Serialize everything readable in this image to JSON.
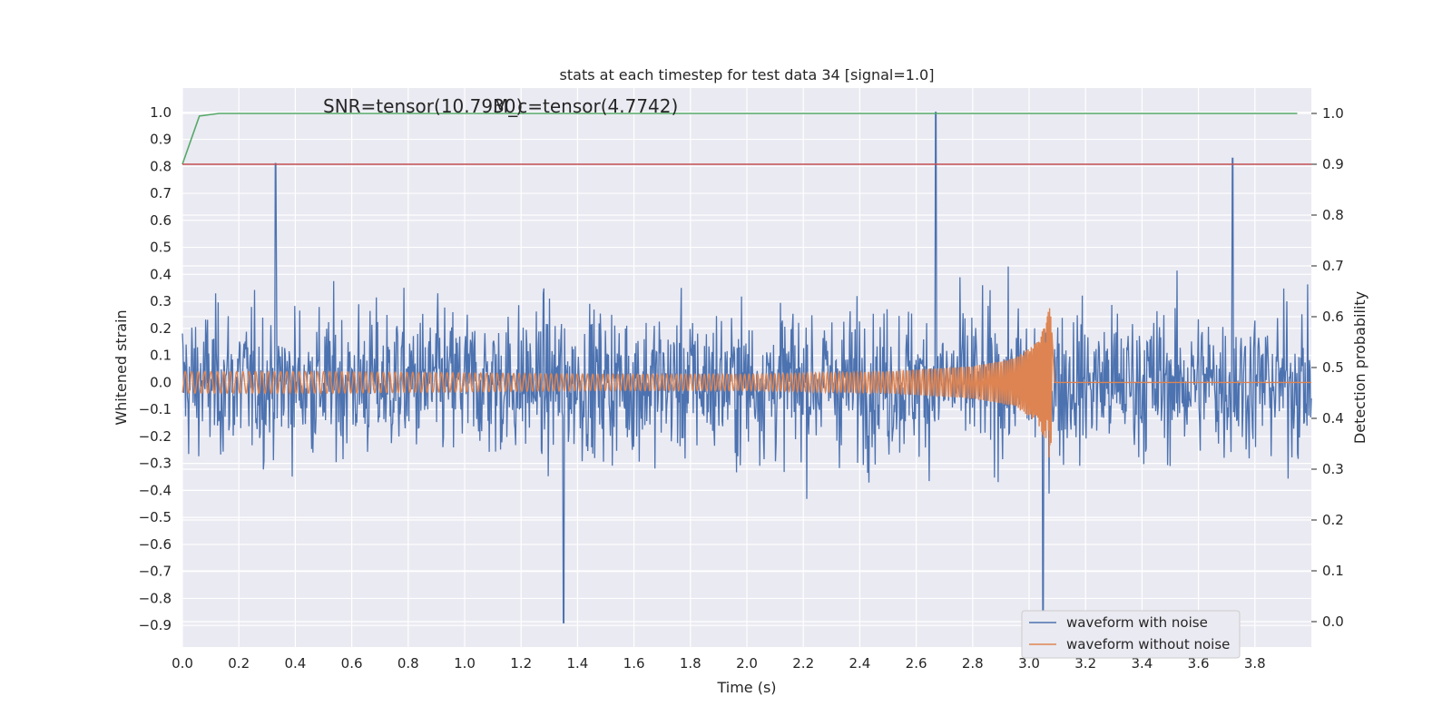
{
  "chart_data": {
    "type": "line",
    "title": "stats at each timestep for test data 34 [signal=1.0]",
    "xlabel": "Time (s)",
    "ylabel": "Whitened strain",
    "ylabel_right": "Detection probability",
    "xlim": [
      0.0,
      4.0
    ],
    "ylim": [
      -0.98,
      1.09
    ],
    "ylim_right": [
      -0.05,
      1.05
    ],
    "x_ticks": [
      "0.0",
      "0.2",
      "0.4",
      "0.6",
      "0.8",
      "1.0",
      "1.2",
      "1.4",
      "1.6",
      "1.8",
      "2.0",
      "2.2",
      "2.4",
      "2.6",
      "2.8",
      "3.0",
      "3.2",
      "3.4",
      "3.6",
      "3.8"
    ],
    "y_ticks": [
      "1.0",
      "0.9",
      "0.8",
      "0.7",
      "0.6",
      "0.5",
      "0.4",
      "0.3",
      "0.2",
      "0.1",
      "0.0",
      "−0.1",
      "−0.2",
      "−0.3",
      "−0.4",
      "−0.5",
      "−0.6",
      "−0.7",
      "−0.8",
      "−0.9"
    ],
    "y_right_ticks": [
      "1.0",
      "0.9",
      "0.8",
      "0.7",
      "0.6",
      "0.5",
      "0.4",
      "0.3",
      "0.2",
      "0.1",
      "0.0"
    ],
    "grid": true,
    "legend_position": "bottom-right",
    "annotations": [
      {
        "text": "SNR=tensor(10.7930)",
        "x": 0.5,
        "y": 1.02
      },
      {
        "text": "M_c=tensor(4.7742)",
        "x": 1.11,
        "y": 1.02
      }
    ],
    "series": [
      {
        "name": "waveform with noise",
        "axis": "left",
        "color": "#4c72b0",
        "kind": "noise",
        "typical_range": [
          -0.55,
          0.55
        ],
        "notable_points": [
          {
            "x": 0.33,
            "y": 0.81
          },
          {
            "x": 1.35,
            "y": -0.89
          },
          {
            "x": 2.67,
            "y": 1.0
          },
          {
            "x": 3.05,
            "y": -0.85
          },
          {
            "x": 3.72,
            "y": 0.83
          }
        ]
      },
      {
        "name": "waveform without noise",
        "axis": "left",
        "color": "#dd8452",
        "kind": "chirp",
        "x": [
          0.0,
          0.5,
          1.0,
          1.5,
          2.0,
          2.5,
          2.8,
          2.95,
          3.03,
          3.06,
          3.075,
          3.09,
          4.0
        ],
        "amplitude": [
          0.04,
          0.04,
          0.035,
          0.03,
          0.03,
          0.04,
          0.06,
          0.09,
          0.15,
          0.22,
          0.3,
          0.0,
          0.0
        ],
        "merger_time": 3.08
      },
      {
        "name": "",
        "axis": "right",
        "color": "#55a868",
        "x": [
          0.0,
          0.06,
          0.13,
          0.2,
          3.95
        ],
        "y": [
          0.9,
          0.995,
          1.0,
          1.0,
          1.0
        ]
      },
      {
        "name": "",
        "axis": "right",
        "color": "#c44e52",
        "x": [
          0.0,
          4.0
        ],
        "y": [
          0.9,
          0.9
        ]
      }
    ]
  }
}
